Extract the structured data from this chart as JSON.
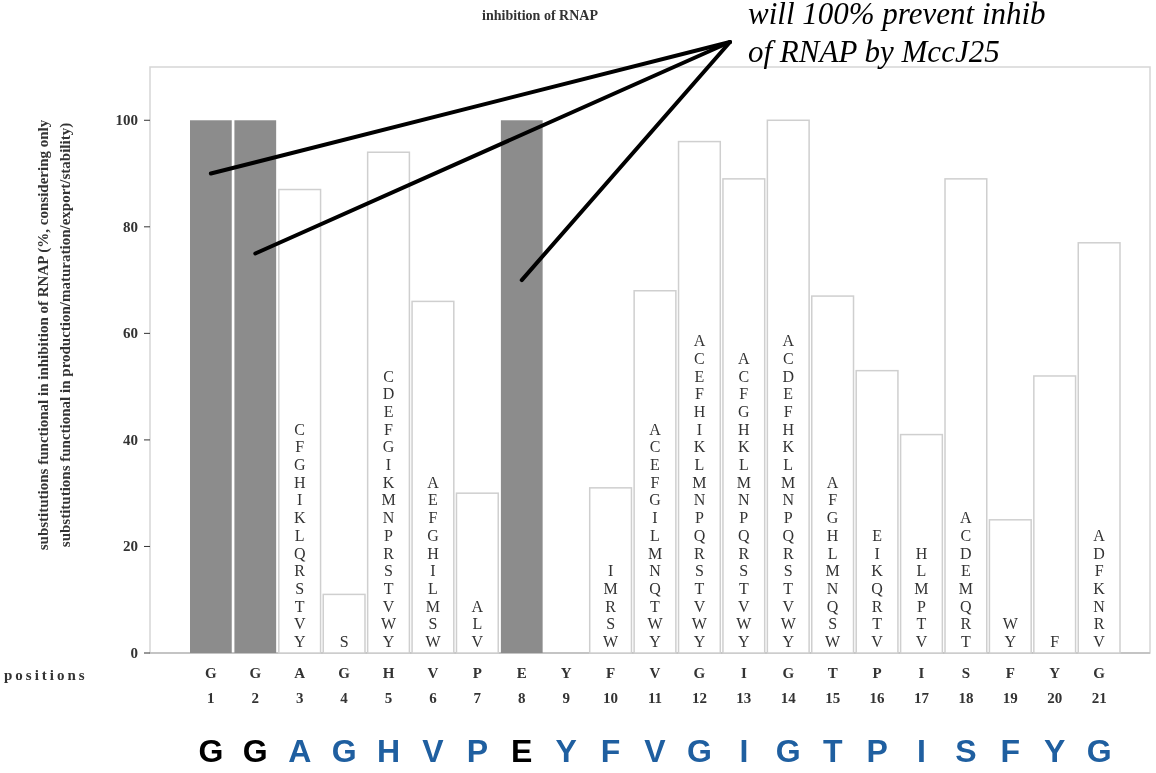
{
  "chart_data": {
    "type": "bar",
    "title": "inhibition of RNAP",
    "ylabel": "substitutions functional in inhibition of RNAP (%, considering only\nsubstitutions functional in production/maturation/export/stability)",
    "xlabel": "positions",
    "categories": [
      "G\n1",
      "G\n2",
      "A\n3",
      "G\n4",
      "H\n5",
      "V\n6",
      "P\n7",
      "E\n8",
      "Y\n9",
      "F\n10",
      "V\n11",
      "G\n12",
      "I\n13",
      "G\n14",
      "T\n15",
      "P\n16",
      "I\n17",
      "S\n18",
      "F\n19",
      "Y\n20",
      "G\n21"
    ],
    "values": [
      100,
      100,
      87,
      11,
      94,
      66,
      30,
      100,
      0,
      31,
      68,
      96,
      89,
      100,
      67,
      53,
      41,
      89,
      25,
      52,
      77
    ],
    "colors": [
      "#8c8c8c",
      "#8c8c8c",
      "#ffffff",
      "#ffffff",
      "#ffffff",
      "#ffffff",
      "#ffffff",
      "#8c8c8c",
      "#ffffff",
      "#ffffff",
      "#ffffff",
      "#ffffff",
      "#ffffff",
      "#ffffff",
      "#ffffff",
      "#ffffff",
      "#ffffff",
      "#ffffff",
      "#ffffff",
      "#ffffff",
      "#ffffff"
    ],
    "value_labels": [
      null,
      null,
      "C\nF\nG\nH\nI\nK\nL\nQ\nR\nS\nT\nV\nY",
      "S",
      "C\nD\nE\nF\nG\nI\nK\nM\nN\nP\nR\nS\nT\nV\nW\nY",
      "A\nE\nF\nG\nH\nI\nL\nM\nS\nW",
      "A\nL\nV",
      null,
      null,
      "I\nM\nR\nS\nW",
      "A\nC\nE\nF\nG\nI\nL\nM\nN\nQ\nT\nW\nY",
      "A\nC\nE\nF\nH\nI\nK\nL\nM\nN\nP\nQ\nR\nS\nT\nV\nW\nY",
      "A\nC\nF\nG\nH\nK\nL\nM\nN\nP\nQ\nR\nS\nT\nV\nW\nY",
      "A\nC\nD\nE\nF\nH\nK\nL\nM\nN\nP\nQ\nR\nS\nT\nV\nW\nY",
      "A\nF\nG\nH\nL\nM\nN\nQ\nS\nW",
      "E\nI\nK\nQ\nR\nT\nV",
      "H\nL\nM\nP\nT\nV",
      "A\nC\nD\nE\nM\nQ\nR\nT",
      "W\nY",
      "F",
      "A\nD\nF\nK\nN\nR\nV"
    ],
    "annotations": [
      "will 100% prevent inhib\nof RNAP by MccJ25",
      "G G A G H V P E Y F V G I G T P I S F Y G"
    ],
    "ylim": [
      0,
      110
    ],
    "yticks": [
      0,
      20,
      40,
      60,
      80,
      100
    ]
  }
}
